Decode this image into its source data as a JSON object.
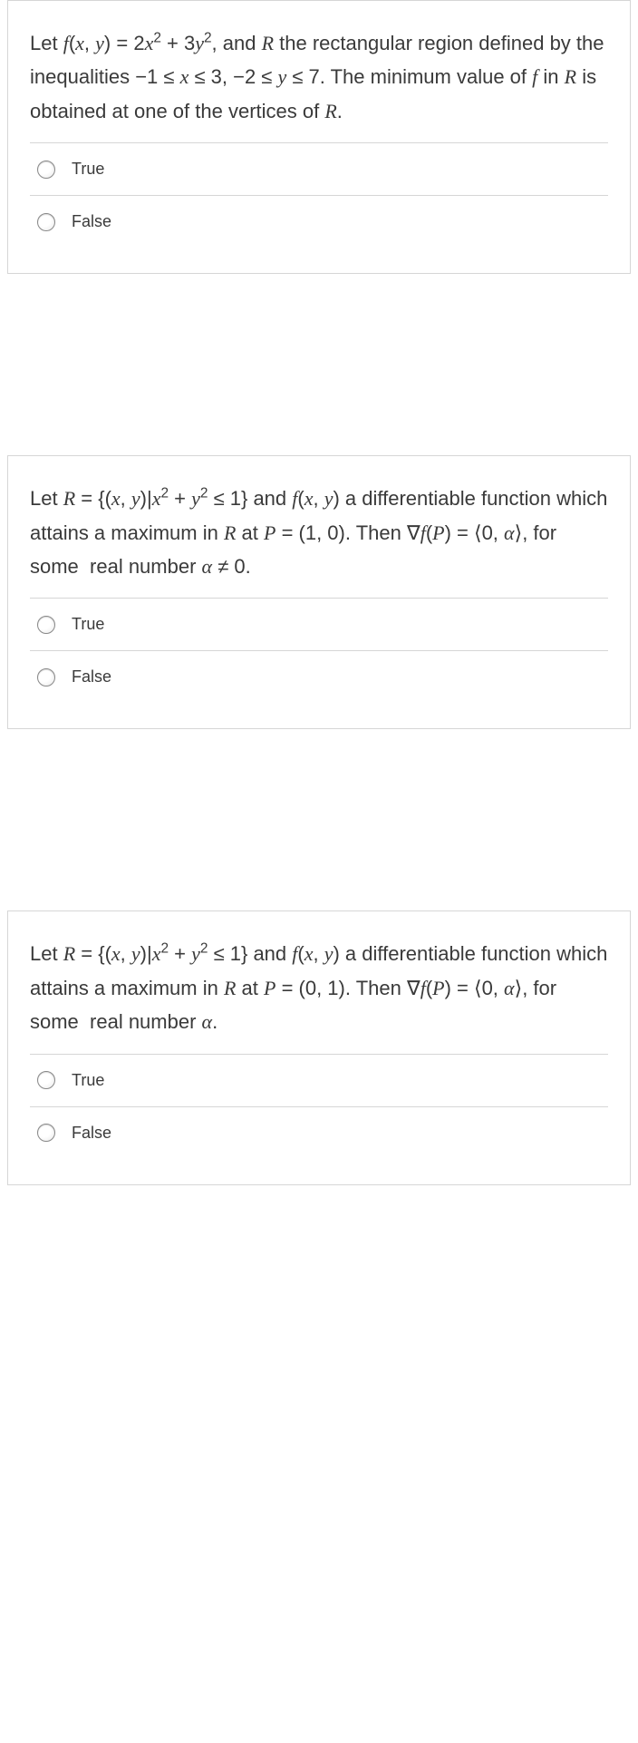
{
  "questions": [
    {
      "html": "Let <span class='math'>f</span>(<span class='math'>x</span>, <span class='math'>y</span>) = 2<span class='math'>x</span><sup>2</sup> + 3<span class='math'>y</span><sup>2</sup>, and <span class='math'>R</span> the rectangular region defined by the inequalities −1 ≤ <span class='math'>x</span> ≤ 3, −2 ≤ <span class='math'>y</span> ≤ 7. The minimum value of <span class='math'>f</span> in <span class='math'>R</span> is obtained at one of the vertices of <span class='math'>R</span>.",
      "options": [
        "True",
        "False"
      ]
    },
    {
      "html": "Let <span class='math'>R</span> = {(<span class='math'>x</span>, <span class='math'>y</span>)|<span class='math'>x</span><sup>2</sup> + <span class='math'>y</span><sup>2</sup> ≤ 1} and <span class='math'>f</span>(<span class='math'>x</span>, <span class='math'>y</span>) a differentiable function which attains a maximum in <span class='math'>R</span> at <span class='math'>P</span> = (1, 0). Then ∇<span class='math'>f</span>(<span class='math'>P</span>) = ⟨0, <span class='math'>α</span>⟩, for some &nbsp;real number <span class='math'>α</span> ≠ 0.",
      "options": [
        "True",
        "False"
      ]
    },
    {
      "html": "Let <span class='math'>R</span> = {(<span class='math'>x</span>, <span class='math'>y</span>)|<span class='math'>x</span><sup>2</sup> + <span class='math'>y</span><sup>2</sup> ≤ 1} and <span class='math'>f</span>(<span class='math'>x</span>, <span class='math'>y</span>) a differentiable function which attains a maximum in <span class='math'>R</span> at <span class='math'>P</span> = (0, 1). Then ∇<span class='math'>f</span>(<span class='math'>P</span>) = ⟨0, <span class='math'>α</span>⟩, for some &nbsp;real number <span class='math'>α</span>.",
      "options": [
        "True",
        "False"
      ]
    }
  ]
}
